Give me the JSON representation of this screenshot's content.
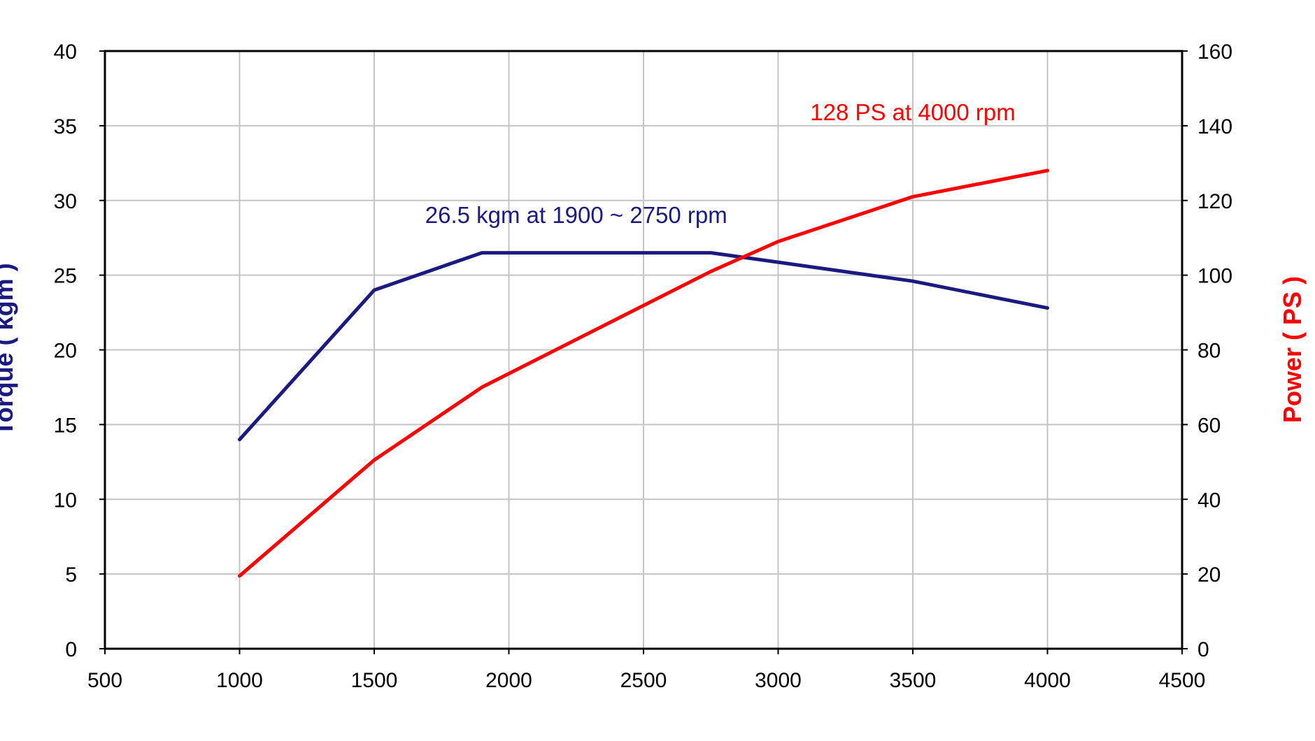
{
  "chart_data": {
    "type": "line",
    "title": "",
    "xlabel": "",
    "ylabel": "Torque ( kgm )",
    "y2label": "Power ( PS )",
    "xlim": [
      500,
      4500
    ],
    "ylim": [
      0,
      40
    ],
    "y2lim": [
      0,
      160
    ],
    "x_ticks": [
      "500",
      "1000",
      "1500",
      "2000",
      "2500",
      "3000",
      "3500",
      "4000",
      "4500"
    ],
    "y_ticks": [
      "0",
      "5",
      "10",
      "15",
      "20",
      "25",
      "30",
      "35",
      "40"
    ],
    "y2_ticks": [
      "0",
      "20",
      "40",
      "60",
      "80",
      "100",
      "120",
      "140",
      "160"
    ],
    "grid": true,
    "series": [
      {
        "name": "Torque",
        "axis": "left",
        "color": "#1a1a80",
        "x": [
          1000,
          1500,
          1900,
          2750,
          3500,
          4000
        ],
        "values": [
          14,
          24,
          26.5,
          26.5,
          24.6,
          22.8
        ]
      },
      {
        "name": "Power",
        "axis": "right",
        "color": "#ff0000",
        "x": [
          1000,
          1500,
          1900,
          2750,
          3000,
          3500,
          4000
        ],
        "values": [
          19.5,
          50.5,
          70,
          101,
          109,
          121,
          128
        ]
      }
    ],
    "annotations": [
      {
        "text": "26.5 kgm at 1900 ~ 2750 rpm",
        "color": "#1a1a80",
        "anchor_x": 2250,
        "anchor_y": 28.5,
        "axis": "left"
      },
      {
        "text": "128 PS at 4000 rpm",
        "color": "#ff0000",
        "anchor_x": 3500,
        "anchor_y": 141.5,
        "axis": "right"
      }
    ]
  }
}
